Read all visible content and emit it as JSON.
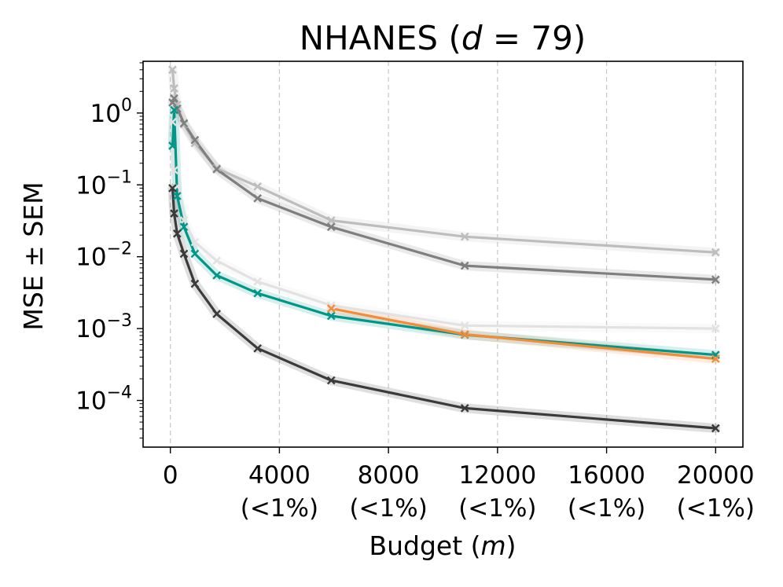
{
  "chart_data": {
    "type": "line",
    "title": {
      "prefix": "NHANES (",
      "var": "d",
      "eq": " = 79)"
    },
    "xlabel": {
      "prefix": "Budget (",
      "var": "m",
      "suffix": ")"
    },
    "ylabel": "MSE ± SEM",
    "yscale": "log",
    "xlim": [
      -1000,
      21000
    ],
    "ylim_log10": [
      -4.65,
      0.72
    ],
    "x_ticks": [
      {
        "value": 0,
        "label": "0",
        "sub": ""
      },
      {
        "value": 4000,
        "label": "4000",
        "sub": "(<1%)"
      },
      {
        "value": 8000,
        "label": "8000",
        "sub": "(<1%)"
      },
      {
        "value": 12000,
        "label": "12000",
        "sub": "(<1%)"
      },
      {
        "value": 16000,
        "label": "16000",
        "sub": "(<1%)"
      },
      {
        "value": 20000,
        "label": "20000",
        "sub": "(<1%)"
      }
    ],
    "y_ticks": [
      {
        "exp": 0,
        "base": "10",
        "sup": "0"
      },
      {
        "exp": -1,
        "base": "10",
        "sup": "−1"
      },
      {
        "exp": -2,
        "base": "10",
        "sup": "−2"
      },
      {
        "exp": -3,
        "base": "10",
        "sup": "−3"
      },
      {
        "exp": -4,
        "base": "10",
        "sup": "−4"
      }
    ],
    "grid": "vertical-dashed",
    "series": [
      {
        "name": "light-gray",
        "color": "#bdbdbd",
        "x": [
          80,
          140,
          250,
          500,
          900,
          1700,
          3200,
          5900,
          10800,
          20000
        ],
        "y": [
          4.0,
          2.2,
          1.3,
          0.7,
          0.38,
          0.17,
          0.095,
          0.032,
          0.019,
          0.0115
        ]
      },
      {
        "name": "mid-gray",
        "color": "#7f7f7f",
        "x": [
          80,
          140,
          250,
          500,
          900,
          1700,
          3200,
          5900,
          10800,
          20000
        ],
        "y": [
          1.4,
          1.6,
          1.15,
          0.72,
          0.42,
          0.165,
          0.065,
          0.026,
          0.0075,
          0.0048
        ]
      },
      {
        "name": "very-light-gray",
        "color": "#e2e2e2",
        "x": [
          80,
          140,
          250,
          500,
          900,
          1700,
          3200,
          5900,
          10800,
          20000
        ],
        "y": [
          0.75,
          0.16,
          0.095,
          0.032,
          0.016,
          0.0088,
          0.0045,
          0.0021,
          0.0011,
          0.001
        ]
      },
      {
        "name": "teal",
        "color": "#009688",
        "x": [
          80,
          140,
          250,
          500,
          900,
          1700,
          3200,
          5900,
          10800,
          20000
        ],
        "y": [
          0.35,
          1.1,
          0.07,
          0.026,
          0.011,
          0.0055,
          0.0031,
          0.0015,
          0.00082,
          0.00043
        ]
      },
      {
        "name": "orange",
        "color": "#f28b3a",
        "x": [
          5900,
          10800,
          20000
        ],
        "y": [
          0.0019,
          0.00083,
          0.00038
        ]
      },
      {
        "name": "dark-gray",
        "color": "#3b3b3b",
        "x": [
          80,
          140,
          250,
          500,
          900,
          1700,
          3200,
          5900,
          10800,
          20000
        ],
        "y": [
          0.09,
          0.04,
          0.021,
          0.011,
          0.0042,
          0.0016,
          0.00053,
          0.00019,
          7.8e-05,
          4.1e-05
        ]
      }
    ]
  }
}
